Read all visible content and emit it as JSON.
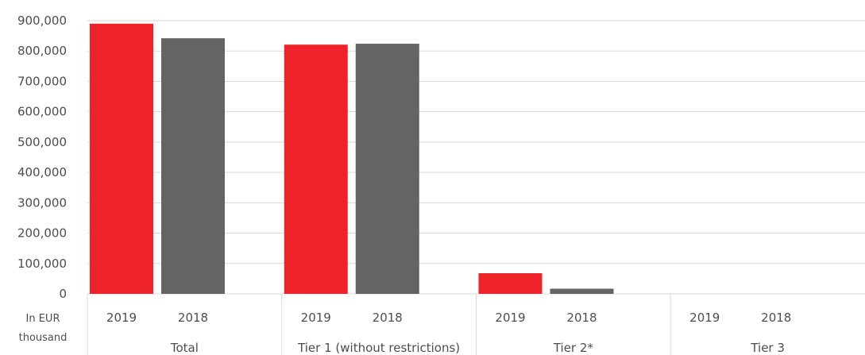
{
  "chart_data": {
    "type": "bar",
    "unit_label": [
      "In EUR",
      "thousand"
    ],
    "groups": [
      {
        "label": "Total",
        "categories": [
          "2019",
          "2018"
        ],
        "values": [
          890000,
          842000
        ]
      },
      {
        "label": "Tier 1 (without restrictions)",
        "categories": [
          "2019",
          "2018"
        ],
        "values": [
          821000,
          824000
        ]
      },
      {
        "label": "Tier 2*",
        "categories": [
          "2019",
          "2018"
        ],
        "values": [
          68000,
          17000
        ]
      },
      {
        "label": "Tier 3",
        "categories": [
          "2019",
          "2018"
        ],
        "values": [
          0,
          0
        ]
      }
    ],
    "series_colors": {
      "2019": "#ee2229",
      "2018": "#636466"
    },
    "y_ticks": [
      "0",
      "100,000",
      "200,000",
      "300,000",
      "400,000",
      "500,000",
      "600,000",
      "700,000",
      "800,000",
      "900,000"
    ],
    "ylim": [
      0,
      900000
    ],
    "grid": true,
    "legend": "none"
  }
}
